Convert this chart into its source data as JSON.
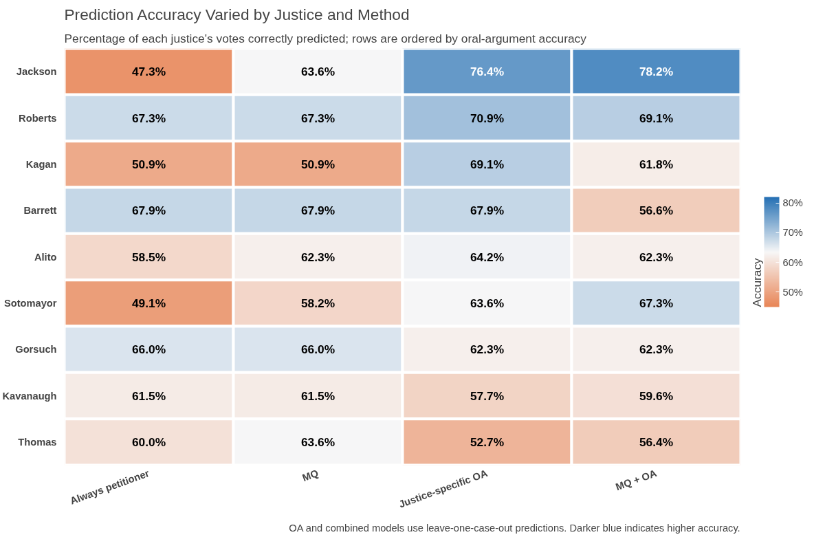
{
  "chart_data": {
    "type": "heatmap",
    "title": "Prediction Accuracy Varied by Justice and Method",
    "subtitle": "Percentage of each justice's votes correctly predicted; rows are ordered by oral-argument accuracy",
    "categories": [
      "Always petitioner",
      "MQ",
      "Justice-specific OA",
      "MQ + OA"
    ],
    "y_categories": [
      "Jackson",
      "Roberts",
      "Kagan",
      "Barrett",
      "Alito",
      "Sotomayor",
      "Gorsuch",
      "Kavanaugh",
      "Thomas"
    ],
    "cells": [
      [
        47.3,
        63.6,
        76.4,
        78.2
      ],
      [
        67.3,
        67.3,
        70.9,
        69.1
      ],
      [
        50.9,
        50.9,
        69.1,
        61.8
      ],
      [
        67.9,
        67.9,
        67.9,
        56.6
      ],
      [
        58.5,
        62.3,
        64.2,
        62.3
      ],
      [
        49.1,
        58.2,
        63.6,
        67.3
      ],
      [
        66.0,
        66.0,
        62.3,
        62.3
      ],
      [
        61.5,
        61.5,
        57.7,
        59.6
      ],
      [
        60.0,
        63.6,
        52.7,
        56.4
      ]
    ],
    "cell_labels": [
      [
        "47.3%",
        "63.6%",
        "76.4%",
        "78.2%"
      ],
      [
        "67.3%",
        "67.3%",
        "70.9%",
        "69.1%"
      ],
      [
        "50.9%",
        "50.9%",
        "69.1%",
        "61.8%"
      ],
      [
        "67.9%",
        "67.9%",
        "67.9%",
        "56.6%"
      ],
      [
        "58.5%",
        "62.3%",
        "64.2%",
        "62.3%"
      ],
      [
        "49.1%",
        "58.2%",
        "63.6%",
        "67.3%"
      ],
      [
        "66.0%",
        "66.0%",
        "62.3%",
        "62.3%"
      ],
      [
        "61.5%",
        "61.5%",
        "57.7%",
        "59.6%"
      ],
      [
        "60.0%",
        "63.6%",
        "52.7%",
        "56.4%"
      ]
    ],
    "clabel": "Accuracy",
    "clim": [
      45,
      82
    ],
    "cticks": [
      {
        "value": 50,
        "label": "50%"
      },
      {
        "value": 60,
        "label": "60%"
      },
      {
        "value": 70,
        "label": "70%"
      },
      {
        "value": 80,
        "label": "80%"
      }
    ],
    "annotations": [
      "OA and combined models use leave-one-case-out predictions. Darker blue indicates higher accuracy."
    ]
  }
}
